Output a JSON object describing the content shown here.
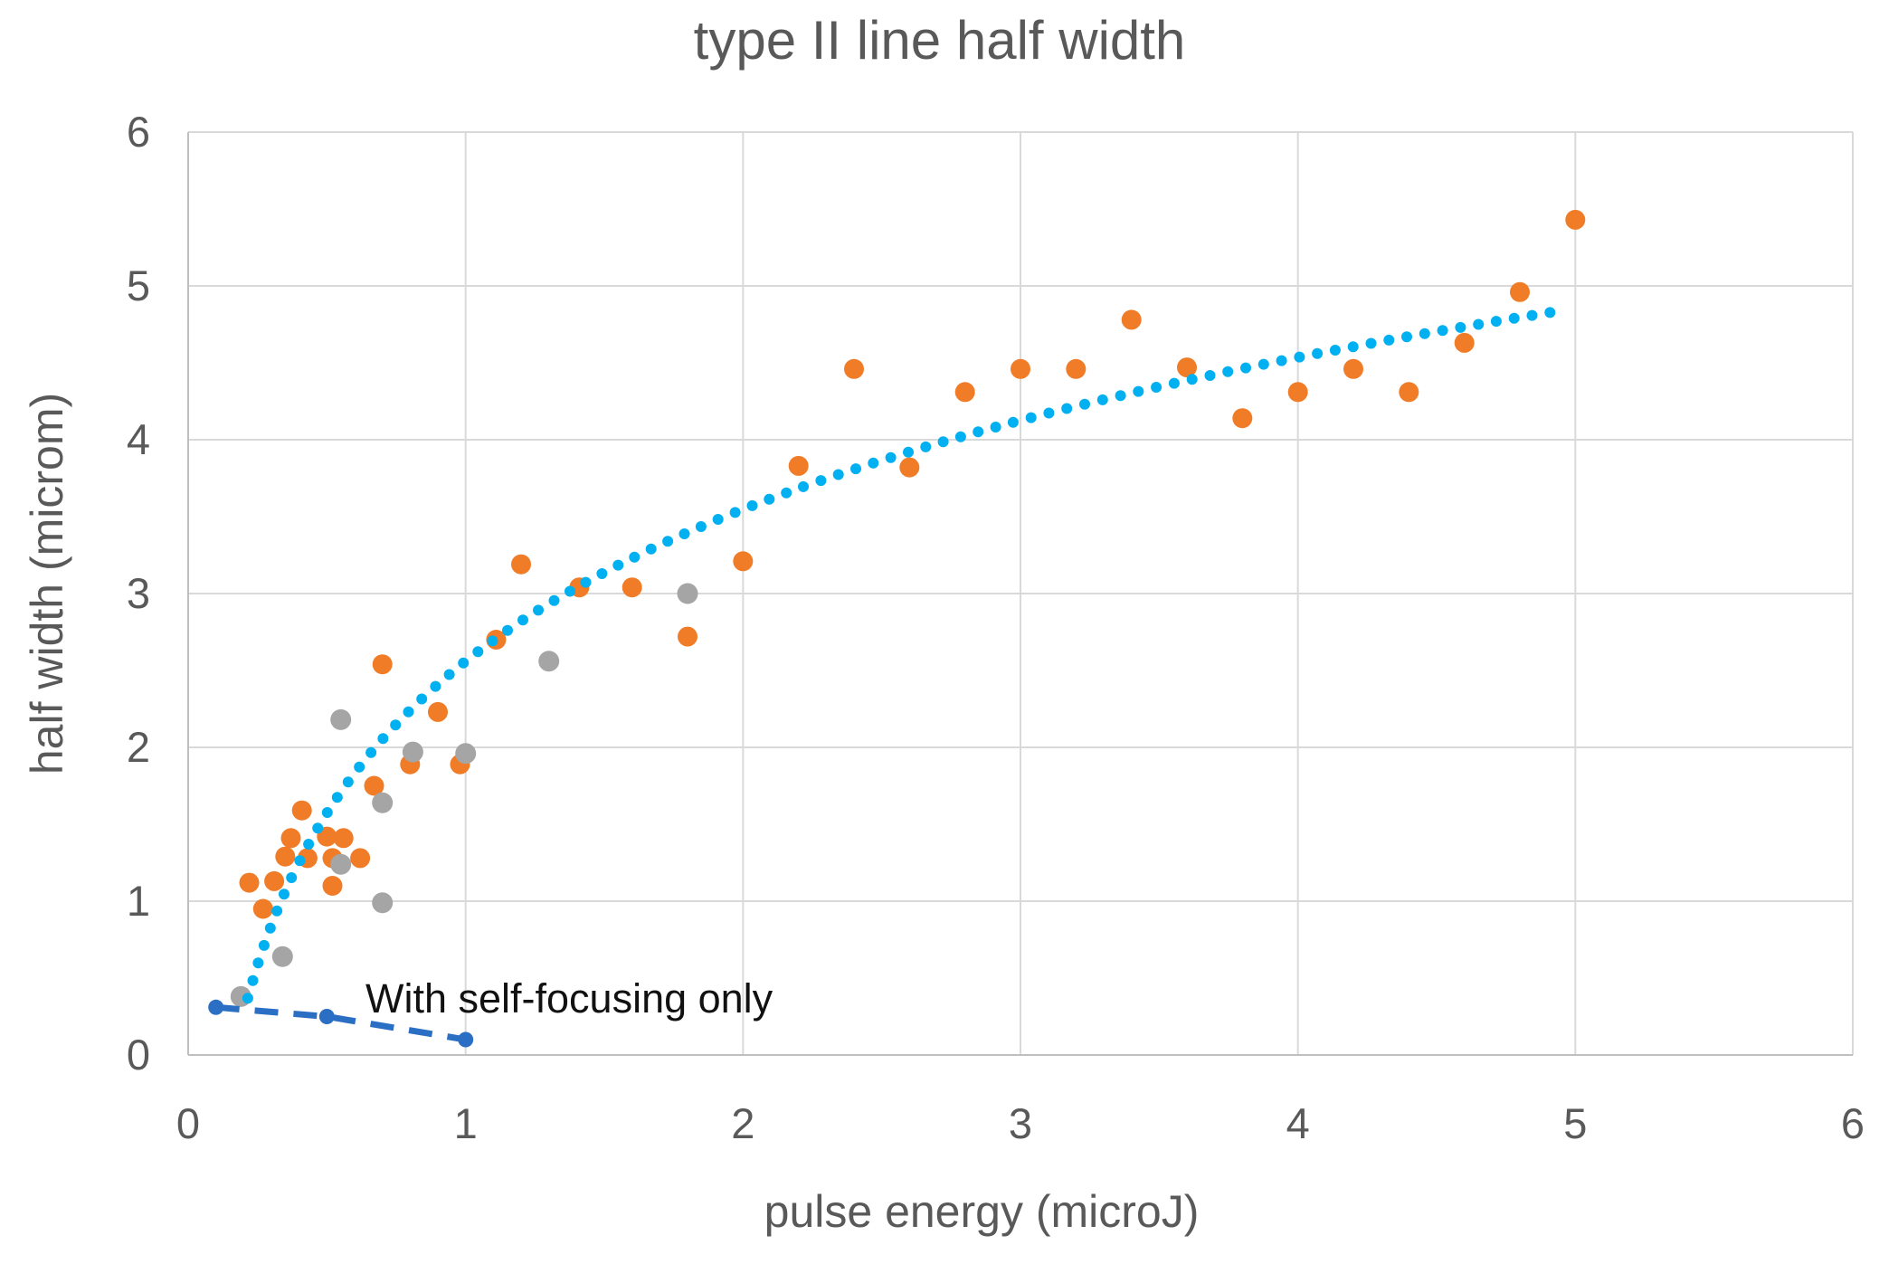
{
  "chart_data": {
    "type": "scatter",
    "title": "type II line half width",
    "xlabel": "pulse energy (microJ)",
    "ylabel": "half width (microm)",
    "xlim": [
      0,
      6
    ],
    "ylim": [
      0,
      6
    ],
    "x_ticks": [
      0,
      1,
      2,
      3,
      4,
      5,
      6
    ],
    "y_ticks": [
      0,
      1,
      2,
      3,
      4,
      5,
      6
    ],
    "grid": true,
    "legend": "none",
    "colors": {
      "orange_series": "#F07C28",
      "gray_series": "#A5A5A5",
      "trendline": "#00B0F0",
      "blue_dashed_series": "#2B6FC4",
      "gridline": "#D9D9D9",
      "axis_line": "#BFBFBF",
      "text": "#595959",
      "annotation_text": "#111111"
    },
    "series": [
      {
        "name": "orange-points",
        "marker": "circle",
        "color_key": "orange_series",
        "points": [
          [
            0.22,
            1.12
          ],
          [
            0.27,
            0.95
          ],
          [
            0.31,
            1.13
          ],
          [
            0.35,
            1.29
          ],
          [
            0.37,
            1.41
          ],
          [
            0.41,
            1.59
          ],
          [
            0.43,
            1.28
          ],
          [
            0.5,
            1.42
          ],
          [
            0.52,
            1.1
          ],
          [
            0.52,
            1.28
          ],
          [
            0.56,
            1.41
          ],
          [
            0.62,
            1.28
          ],
          [
            0.67,
            1.75
          ],
          [
            0.7,
            2.54
          ],
          [
            0.8,
            1.89
          ],
          [
            0.9,
            2.23
          ],
          [
            0.98,
            1.89
          ],
          [
            1.11,
            2.7
          ],
          [
            1.2,
            3.19
          ],
          [
            1.41,
            3.04
          ],
          [
            1.6,
            3.04
          ],
          [
            1.8,
            2.72
          ],
          [
            2.0,
            3.21
          ],
          [
            2.2,
            3.83
          ],
          [
            2.4,
            4.46
          ],
          [
            2.6,
            3.82
          ],
          [
            2.8,
            4.31
          ],
          [
            3.0,
            4.46
          ],
          [
            3.2,
            4.46
          ],
          [
            3.4,
            4.78
          ],
          [
            3.6,
            4.47
          ],
          [
            3.8,
            4.14
          ],
          [
            4.0,
            4.31
          ],
          [
            4.2,
            4.46
          ],
          [
            4.4,
            4.31
          ],
          [
            4.6,
            4.63
          ],
          [
            4.8,
            4.96
          ],
          [
            5.0,
            5.43
          ]
        ]
      },
      {
        "name": "gray-points",
        "marker": "circle",
        "color_key": "gray_series",
        "points": [
          [
            0.19,
            0.38
          ],
          [
            0.34,
            0.64
          ],
          [
            0.55,
            1.24
          ],
          [
            0.55,
            2.18
          ],
          [
            0.7,
            0.99
          ],
          [
            0.7,
            1.64
          ],
          [
            0.81,
            1.97
          ],
          [
            1.0,
            1.96
          ],
          [
            1.3,
            2.56
          ],
          [
            1.8,
            3.0
          ]
        ]
      },
      {
        "name": "self-focusing-only-points",
        "marker": "circle",
        "color_key": "blue_dashed_series",
        "line": "dashed",
        "points": [
          [
            0.1,
            0.31
          ],
          [
            0.5,
            0.25
          ],
          [
            1.0,
            0.1
          ]
        ]
      }
    ],
    "trendline": {
      "style": "dotted",
      "color_key": "trendline",
      "fit": "logarithmic",
      "a": 2.56,
      "b": 1.425,
      "x_start": 0.215,
      "x_end": 4.95
    },
    "annotation": {
      "text": "With self-focusing only",
      "x": 0.64,
      "y": 0.37
    }
  }
}
